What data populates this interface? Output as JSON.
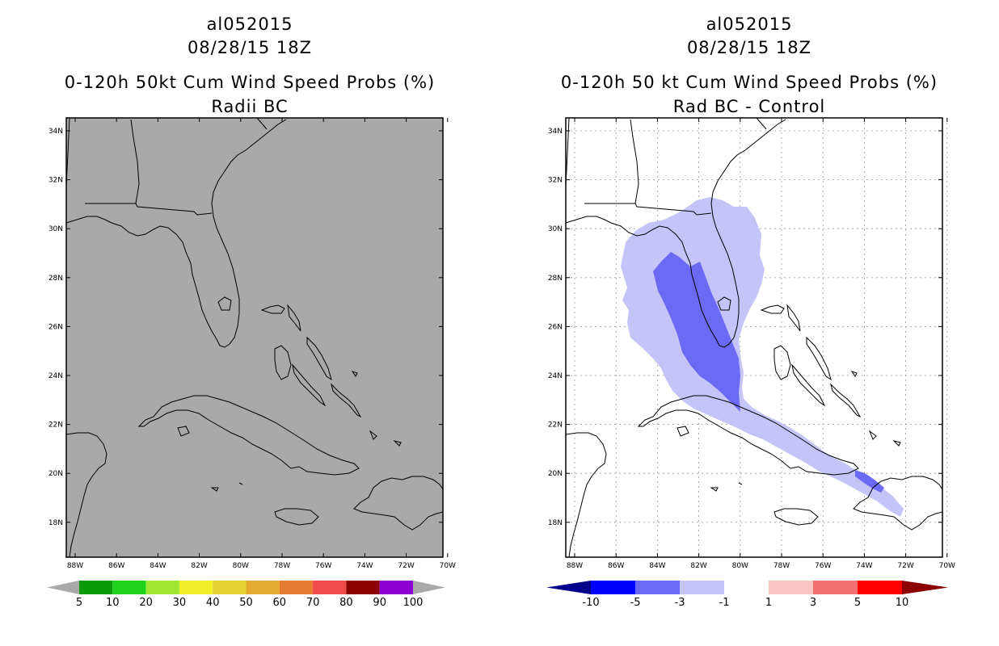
{
  "panels": [
    {
      "storm_id": "al052015",
      "datetime": "08/28/15 18Z",
      "title": "0-120h 50kt Cum Wind Speed Probs (%)",
      "subtitle": "Radii BC",
      "background": "#a9a9a9",
      "colorbar": {
        "labels": [
          "5",
          "10",
          "20",
          "30",
          "40",
          "50",
          "60",
          "70",
          "80",
          "90",
          "100"
        ],
        "colors": [
          "#0a9a0a",
          "#1ed21e",
          "#a0e632",
          "#f0f028",
          "#e6d232",
          "#e6aa32",
          "#e67d32",
          "#f04b4b",
          "#8c0000",
          "#8c00d2"
        ],
        "end_color": "#a9a9a9"
      }
    },
    {
      "storm_id": "al052015",
      "datetime": "08/28/15 18Z",
      "title": "0-120h 50 kt Cum Wind Speed Probs (%)",
      "subtitle": "Rad BC - Control",
      "background": "#ffffff",
      "colorbar": {
        "labels": [
          "-10",
          "-5",
          "-3",
          "-1",
          "1",
          "3",
          "5",
          "10"
        ],
        "colors": [
          "#0000ff",
          "#6a6af4",
          "#c4c4f8",
          "#ffffff",
          "#f8c4c4",
          "#f47070",
          "#ff0000"
        ],
        "low_color": "#00008c",
        "high_color": "#8c0000"
      }
    }
  ],
  "axes": {
    "lat_labels": [
      "34N",
      "32N",
      "30N",
      "28N",
      "26N",
      "24N",
      "22N",
      "20N",
      "18N"
    ],
    "lon_labels": [
      "88W",
      "86W",
      "84W",
      "82W",
      "80W",
      "78W",
      "76W",
      "74W",
      "72W",
      "70W"
    ]
  },
  "map_data": {
    "contour_levels": {
      "outer": "-3 to -1",
      "inner": "-5 to -3"
    },
    "regions": [
      "Florida",
      "Georgia",
      "Cuba",
      "Bahamas",
      "Jamaica",
      "Hispaniola",
      "Yucatan"
    ]
  }
}
